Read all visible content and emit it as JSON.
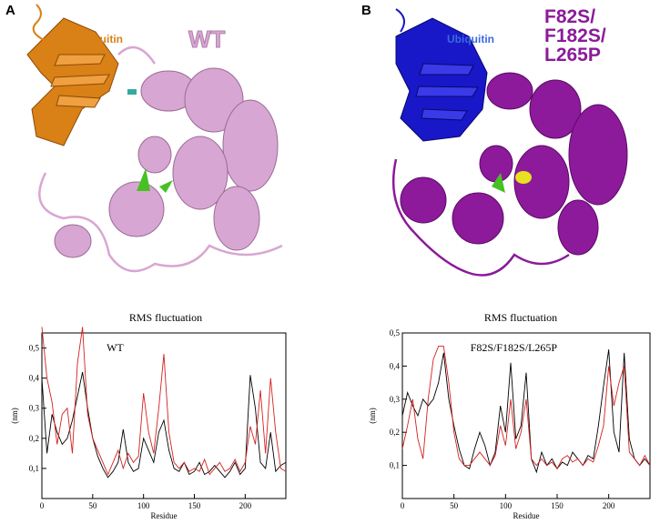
{
  "panels": [
    {
      "letter": "A",
      "ubiquitin_label": "Ubiquitin",
      "variant_label": "WT",
      "colors": {
        "ubiquitin": "#d98016",
        "protein": "#d8a6d2",
        "protein_dark": "#9a6a95",
        "ligand": "#47c024",
        "accent": "#36a9a0"
      }
    },
    {
      "letter": "B",
      "ubiquitin_label": "Ubiquitin",
      "variant_label_lines": [
        "F82S/",
        "F182S/",
        "L265P"
      ],
      "colors": {
        "ubiquitin": "#1818c8",
        "protein": "#8c1a9a",
        "protein_dark": "#5a0a66",
        "ligand": "#47c024",
        "accent": "#e8e020"
      }
    }
  ],
  "chart_data": [
    {
      "type": "line",
      "title": "RMS fluctuation",
      "inset_label": "WT",
      "xlabel": "Residue",
      "ylabel": "(nm)",
      "xlim": [
        0,
        240
      ],
      "ylim": [
        0,
        0.55
      ],
      "xticks": [
        "0",
        "50",
        "100",
        "150",
        "200"
      ],
      "yticks": [
        "0,1",
        "0,2",
        "0,3",
        "0,4",
        "0,5"
      ],
      "series": [
        {
          "color": "#000000",
          "x": [
            0,
            5,
            10,
            15,
            20,
            25,
            30,
            35,
            40,
            45,
            50,
            55,
            60,
            65,
            70,
            75,
            80,
            85,
            90,
            95,
            100,
            105,
            110,
            115,
            120,
            125,
            130,
            135,
            140,
            145,
            150,
            155,
            160,
            165,
            170,
            175,
            180,
            185,
            190,
            195,
            200,
            205,
            210,
            215,
            220,
            225,
            230,
            235,
            240
          ],
          "y": [
            0.4,
            0.15,
            0.28,
            0.22,
            0.18,
            0.2,
            0.26,
            0.34,
            0.42,
            0.3,
            0.2,
            0.14,
            0.1,
            0.07,
            0.09,
            0.12,
            0.23,
            0.12,
            0.09,
            0.1,
            0.2,
            0.16,
            0.12,
            0.22,
            0.26,
            0.16,
            0.1,
            0.09,
            0.12,
            0.08,
            0.09,
            0.12,
            0.08,
            0.09,
            0.11,
            0.09,
            0.07,
            0.09,
            0.12,
            0.08,
            0.1,
            0.41,
            0.3,
            0.12,
            0.1,
            0.22,
            0.09,
            0.11,
            0.12
          ]
        },
        {
          "color": "#d42020",
          "x": [
            0,
            5,
            10,
            15,
            20,
            25,
            30,
            35,
            40,
            45,
            50,
            55,
            60,
            65,
            70,
            75,
            80,
            85,
            90,
            95,
            100,
            105,
            110,
            115,
            120,
            125,
            130,
            135,
            140,
            145,
            150,
            155,
            160,
            165,
            170,
            175,
            180,
            185,
            190,
            195,
            200,
            205,
            210,
            215,
            220,
            225,
            230,
            235,
            240
          ],
          "y": [
            0.57,
            0.4,
            0.32,
            0.18,
            0.28,
            0.3,
            0.15,
            0.45,
            0.57,
            0.28,
            0.2,
            0.16,
            0.12,
            0.08,
            0.12,
            0.16,
            0.1,
            0.15,
            0.12,
            0.14,
            0.35,
            0.22,
            0.15,
            0.3,
            0.48,
            0.22,
            0.12,
            0.1,
            0.12,
            0.09,
            0.1,
            0.09,
            0.13,
            0.08,
            0.1,
            0.12,
            0.09,
            0.1,
            0.13,
            0.09,
            0.12,
            0.24,
            0.18,
            0.36,
            0.15,
            0.4,
            0.22,
            0.1,
            0.09
          ]
        }
      ]
    },
    {
      "type": "line",
      "title": "RMS fluctuation",
      "inset_label": "F82S/F182S/L265P",
      "xlabel": "Residue",
      "ylabel": "(nm)",
      "xlim": [
        0,
        240
      ],
      "ylim": [
        0,
        0.5
      ],
      "xticks": [
        "0",
        "50",
        "100",
        "150",
        "200"
      ],
      "yticks": [
        "0,1",
        "0,2",
        "0,3",
        "0,4",
        "0,5"
      ],
      "series": [
        {
          "color": "#000000",
          "x": [
            0,
            5,
            10,
            15,
            20,
            25,
            30,
            35,
            40,
            45,
            50,
            55,
            60,
            65,
            70,
            75,
            80,
            85,
            90,
            95,
            100,
            105,
            110,
            115,
            120,
            125,
            130,
            135,
            140,
            145,
            150,
            155,
            160,
            165,
            170,
            175,
            180,
            185,
            190,
            195,
            200,
            205,
            210,
            215,
            220,
            225,
            230,
            235,
            240
          ],
          "y": [
            0.25,
            0.32,
            0.28,
            0.25,
            0.3,
            0.28,
            0.3,
            0.35,
            0.44,
            0.3,
            0.22,
            0.15,
            0.1,
            0.09,
            0.15,
            0.2,
            0.16,
            0.1,
            0.14,
            0.28,
            0.2,
            0.41,
            0.18,
            0.22,
            0.38,
            0.12,
            0.08,
            0.14,
            0.1,
            0.12,
            0.09,
            0.11,
            0.1,
            0.14,
            0.12,
            0.1,
            0.13,
            0.12,
            0.22,
            0.34,
            0.45,
            0.2,
            0.14,
            0.44,
            0.18,
            0.12,
            0.1,
            0.12,
            0.1
          ]
        },
        {
          "color": "#d42020",
          "x": [
            0,
            5,
            10,
            15,
            20,
            25,
            30,
            35,
            40,
            45,
            50,
            55,
            60,
            65,
            70,
            75,
            80,
            85,
            90,
            95,
            100,
            105,
            110,
            115,
            120,
            125,
            130,
            135,
            140,
            145,
            150,
            155,
            160,
            165,
            170,
            175,
            180,
            185,
            190,
            195,
            200,
            205,
            210,
            215,
            220,
            225,
            230,
            235,
            240
          ],
          "y": [
            0.15,
            0.22,
            0.3,
            0.18,
            0.12,
            0.3,
            0.42,
            0.46,
            0.46,
            0.35,
            0.2,
            0.12,
            0.1,
            0.1,
            0.12,
            0.14,
            0.12,
            0.1,
            0.13,
            0.22,
            0.16,
            0.3,
            0.15,
            0.2,
            0.3,
            0.12,
            0.1,
            0.12,
            0.1,
            0.11,
            0.09,
            0.12,
            0.13,
            0.11,
            0.12,
            0.1,
            0.12,
            0.11,
            0.16,
            0.22,
            0.4,
            0.28,
            0.35,
            0.4,
            0.14,
            0.12,
            0.1,
            0.13,
            0.1
          ]
        }
      ]
    }
  ]
}
